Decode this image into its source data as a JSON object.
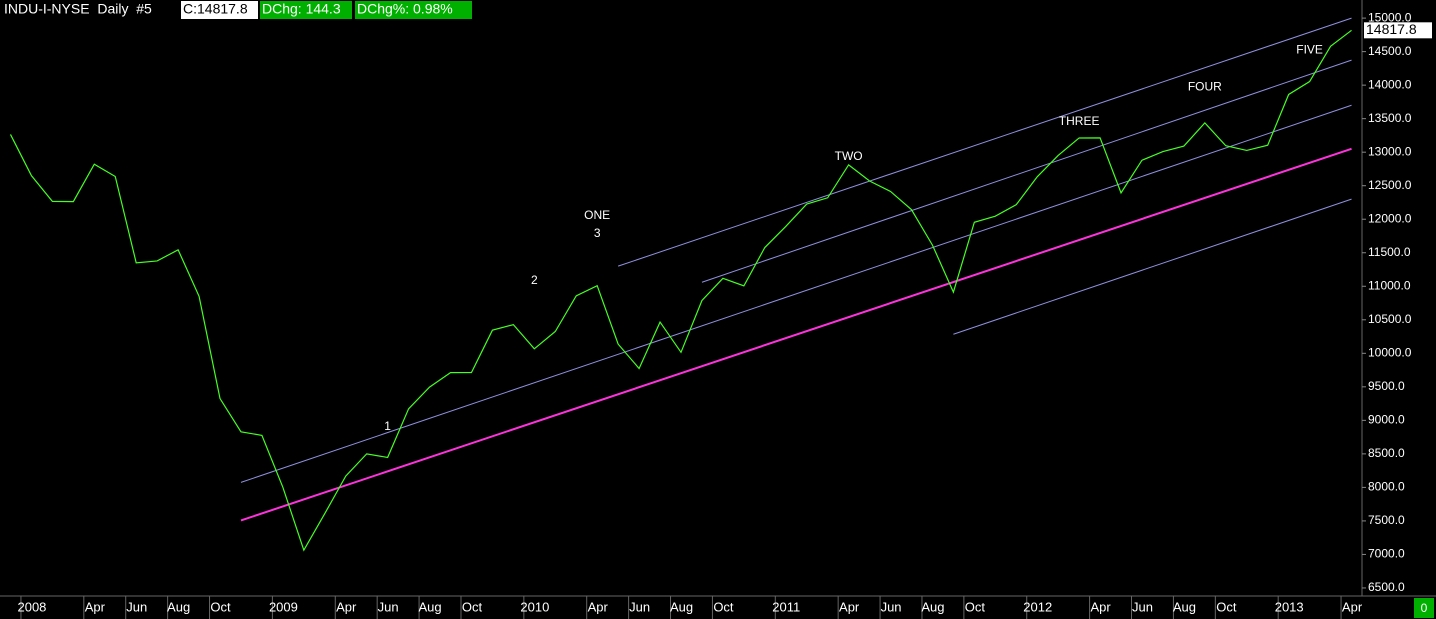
{
  "chart_data": {
    "type": "line",
    "header": {
      "symbol": "INDU-I-NYSE  Daily  #5",
      "close": "C:14817.8",
      "change": "DChg: 144.3",
      "change_pct": "DChg%: 0.98%"
    },
    "corner_value": "0",
    "color": "#44ff22",
    "x": [
      "2007-12",
      "2008-01",
      "2008-02",
      "2008-03",
      "2008-04",
      "2008-05",
      "2008-06",
      "2008-07",
      "2008-08",
      "2008-09",
      "2008-10",
      "2008-11",
      "2008-12",
      "2009-01",
      "2009-02",
      "2009-03",
      "2009-04",
      "2009-05",
      "2009-06",
      "2009-07",
      "2009-08",
      "2009-09",
      "2009-10",
      "2009-11",
      "2009-12",
      "2010-01",
      "2010-02",
      "2010-03",
      "2010-04",
      "2010-05",
      "2010-06",
      "2010-07",
      "2010-08",
      "2010-09",
      "2010-10",
      "2010-11",
      "2010-12",
      "2011-01",
      "2011-02",
      "2011-03",
      "2011-04",
      "2011-05",
      "2011-06",
      "2011-07",
      "2011-08",
      "2011-09",
      "2011-10",
      "2011-11",
      "2011-12",
      "2012-01",
      "2012-02",
      "2012-03",
      "2012-04",
      "2012-05",
      "2012-06",
      "2012-07",
      "2012-08",
      "2012-09",
      "2012-10",
      "2012-11",
      "2012-12",
      "2013-01",
      "2013-02",
      "2013-03",
      "2013-04"
    ],
    "values": [
      13265,
      12650,
      12266,
      12263,
      12820,
      12638,
      11350,
      11378,
      11544,
      10851,
      9325,
      8829,
      8776,
      8001,
      7063,
      7609,
      8168,
      8500,
      8447,
      9172,
      9496,
      9712,
      9713,
      10345,
      10428,
      10067,
      10325,
      10857,
      11009,
      10137,
      9774,
      10466,
      10015,
      10788,
      11118,
      11006,
      11578,
      11892,
      12226,
      12320,
      12811,
      12570,
      12414,
      12143,
      11614,
      10913,
      11955,
      12046,
      12218,
      12633,
      12952,
      13212,
      13214,
      12393,
      12880,
      13009,
      13091,
      13437,
      13096,
      13026,
      13104,
      13861,
      14054,
      14579,
      14817.8
    ],
    "xlim": [
      "2007-12",
      "2013-05"
    ],
    "ylim": [
      6380,
      15270
    ],
    "yticks": [
      {
        "value": 6500,
        "label": "6500.0"
      },
      {
        "value": 7000,
        "label": "7000.0"
      },
      {
        "value": 7500,
        "label": "7500.0"
      },
      {
        "value": 8000,
        "label": "8000.0"
      },
      {
        "value": 8500,
        "label": "8500.0"
      },
      {
        "value": 9000,
        "label": "9000.0"
      },
      {
        "value": 9500,
        "label": "9500.0"
      },
      {
        "value": 10000,
        "label": "10000.0"
      },
      {
        "value": 10500,
        "label": "10500.0"
      },
      {
        "value": 11000,
        "label": "11000.0"
      },
      {
        "value": 11500,
        "label": "11500.0"
      },
      {
        "value": 12000,
        "label": "12000.0"
      },
      {
        "value": 12500,
        "label": "12500.0"
      },
      {
        "value": 13000,
        "label": "13000.0"
      },
      {
        "value": 13500,
        "label": "13500.0"
      },
      {
        "value": 14000,
        "label": "14000.0"
      },
      {
        "value": 14500,
        "label": "14500.0"
      },
      {
        "value": 15000,
        "label": "15000.0"
      }
    ],
    "xticks": [
      {
        "value": "2008-01",
        "label": "2008"
      },
      {
        "value": "2008-04",
        "label": "Apr"
      },
      {
        "value": "2008-06",
        "label": "Jun"
      },
      {
        "value": "2008-08",
        "label": "Aug"
      },
      {
        "value": "2008-10",
        "label": "Oct"
      },
      {
        "value": "2009-01",
        "label": "2009"
      },
      {
        "value": "2009-04",
        "label": "Apr"
      },
      {
        "value": "2009-06",
        "label": "Jun"
      },
      {
        "value": "2009-08",
        "label": "Aug"
      },
      {
        "value": "2009-10",
        "label": "Oct"
      },
      {
        "value": "2010-01",
        "label": "2010"
      },
      {
        "value": "2010-04",
        "label": "Apr"
      },
      {
        "value": "2010-06",
        "label": "Jun"
      },
      {
        "value": "2010-08",
        "label": "Aug"
      },
      {
        "value": "2010-10",
        "label": "Oct"
      },
      {
        "value": "2011-01",
        "label": "2011"
      },
      {
        "value": "2011-04",
        "label": "Apr"
      },
      {
        "value": "2011-06",
        "label": "Jun"
      },
      {
        "value": "2011-08",
        "label": "Aug"
      },
      {
        "value": "2011-10",
        "label": "Oct"
      },
      {
        "value": "2012-01",
        "label": "2012"
      },
      {
        "value": "2012-04",
        "label": "Apr"
      },
      {
        "value": "2012-06",
        "label": "Jun"
      },
      {
        "value": "2012-08",
        "label": "Aug"
      },
      {
        "value": "2012-10",
        "label": "Oct"
      },
      {
        "value": "2013-01",
        "label": "2013"
      },
      {
        "value": "2013-04",
        "label": "Apr"
      }
    ],
    "trendlines": [
      {
        "color": "#ff33dd",
        "x": [
          "2008-11",
          "2013-04"
        ],
        "y": [
          7507,
          13050
        ]
      },
      {
        "color": "#9090e0",
        "x": [
          "2008-11",
          "2013-04"
        ],
        "y": [
          8075,
          13700
        ]
      },
      {
        "color": "#9090e0",
        "x": [
          "2010-05",
          "2013-04"
        ],
        "y": [
          11300,
          15000
        ]
      },
      {
        "color": "#9090e0",
        "x": [
          "2010-09",
          "2013-04"
        ],
        "y": [
          11060,
          14373
        ]
      },
      {
        "color": "#9090e0",
        "x": [
          "2011-09",
          "2013-04"
        ],
        "y": [
          10284,
          12300
        ]
      }
    ],
    "annotations": [
      {
        "text": "1",
        "x": "2009-06",
        "y": 8900
      },
      {
        "text": "2",
        "x": "2010-01",
        "y": 11080
      },
      {
        "text": "3",
        "x": "2010-04",
        "y": 11780
      },
      {
        "text": "ONE",
        "x": "2010-04",
        "y": 12050
      },
      {
        "text": "TWO",
        "x": "2011-04",
        "y": 12930
      },
      {
        "text": "THREE",
        "x": "2012-03",
        "y": 13450
      },
      {
        "text": "FOUR",
        "x": "2012-09",
        "y": 13970
      },
      {
        "text": "FIVE",
        "x": "2013-02",
        "y": 14520
      }
    ]
  }
}
